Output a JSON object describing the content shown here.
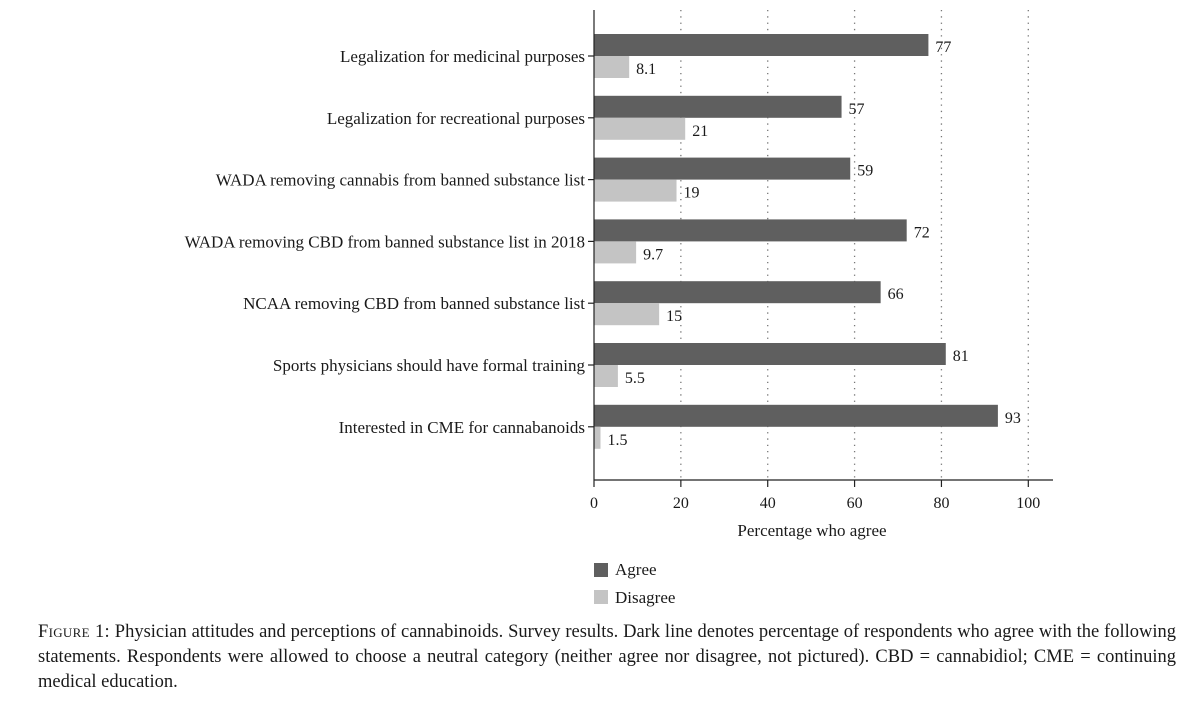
{
  "chart_data": {
    "type": "bar",
    "orientation": "horizontal",
    "categories": [
      "Legalization for medicinal purposes",
      "Legalization for recreational purposes",
      "WADA removing cannabis from banned substance list",
      "WADA removing CBD from banned substance list in 2018",
      "NCAA removing CBD from banned substance list",
      "Sports physicians should have formal training",
      "Interested in CME for cannabanoids"
    ],
    "series": [
      {
        "name": "Agree",
        "color": "#5f5f5f",
        "values": [
          77,
          57,
          59,
          72,
          66,
          81,
          93
        ],
        "labels": [
          "77",
          "57",
          "59",
          "72",
          "66",
          "81",
          "93"
        ]
      },
      {
        "name": "Disagree",
        "color": "#c4c4c4",
        "values": [
          8.1,
          21,
          19,
          9.7,
          15,
          5.5,
          1.5
        ],
        "labels": [
          "8.1",
          "21",
          "19",
          "9.7",
          "15",
          "5.5",
          "1.5"
        ]
      }
    ],
    "xlabel": "Percentage who agree",
    "xlim": [
      0,
      105
    ],
    "xticks": [
      0,
      20,
      40,
      60,
      80,
      100
    ],
    "xtick_labels": [
      "0",
      "20",
      "40",
      "60",
      "80",
      "100"
    ],
    "grid": "vertical dotted",
    "legend_position": "bottom"
  },
  "caption": {
    "label": "Figure 1:",
    "text": "Physician attitudes and perceptions of cannabinoids. Survey results. Dark line denotes percentage of respondents who agree with the following statements. Respondents were allowed to choose a neutral category (neither agree nor disagree, not pictured). CBD = cannabidiol; CME = continuing medical education."
  }
}
